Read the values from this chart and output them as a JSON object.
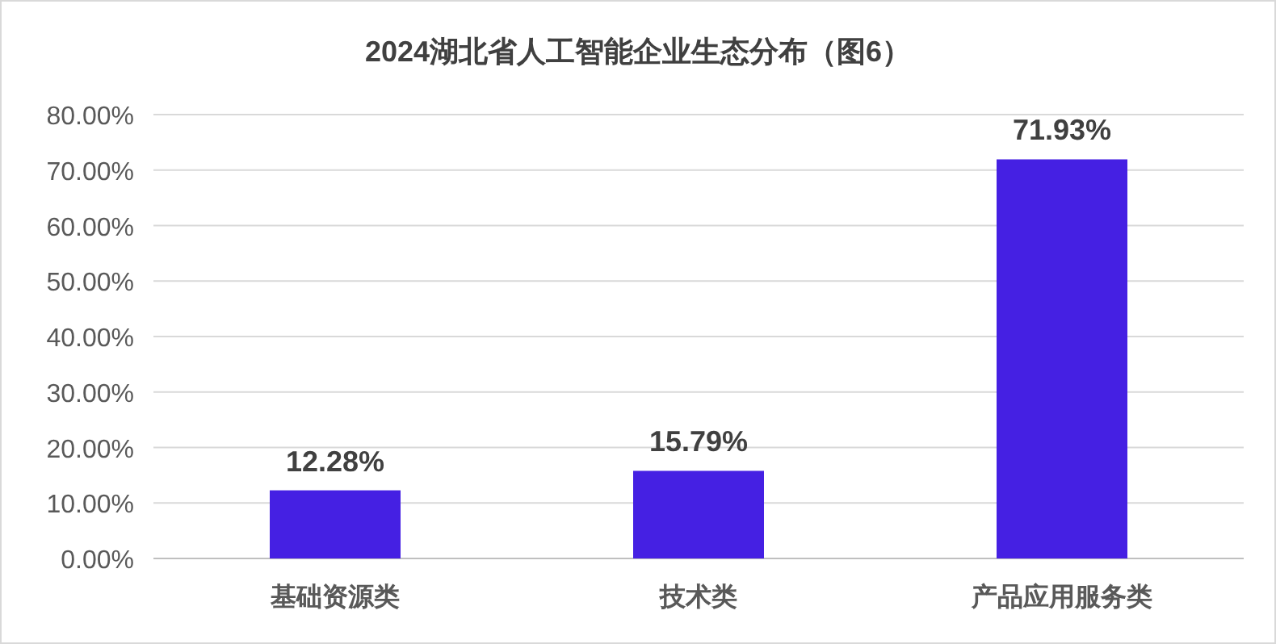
{
  "chart_data": {
    "type": "bar",
    "title": "2024湖北省人工智能企业生态分布（图6）",
    "categories": [
      "基础资源类",
      "技术类",
      "产品应用服务类"
    ],
    "values": [
      12.28,
      15.79,
      71.93
    ],
    "value_labels": [
      "12.28%",
      "15.79%",
      "71.93%"
    ],
    "color": "#4520e3",
    "ylim": [
      0,
      80
    ],
    "yticks": [
      {
        "value": 0,
        "label": "0.00%"
      },
      {
        "value": 10,
        "label": "10.00%"
      },
      {
        "value": 20,
        "label": "20.00%"
      },
      {
        "value": 30,
        "label": "30.00%"
      },
      {
        "value": 40,
        "label": "40.00%"
      },
      {
        "value": 50,
        "label": "50.00%"
      },
      {
        "value": 60,
        "label": "60.00%"
      },
      {
        "value": 70,
        "label": "70.00%"
      },
      {
        "value": 80,
        "label": "80.00%"
      }
    ],
    "grid": "y"
  }
}
